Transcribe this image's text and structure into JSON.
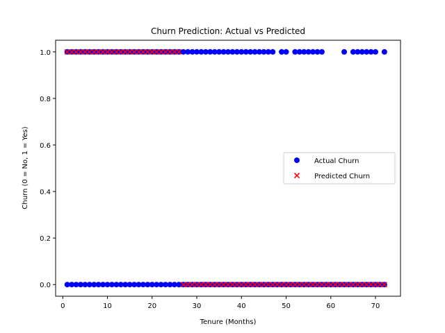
{
  "chart_data": {
    "type": "scatter",
    "title": "Churn Prediction: Actual vs Predicted",
    "xlabel": "Tenure (Months)",
    "ylabel": "Churn (0 = No, 1 = Yes)",
    "xlim": [
      -1.6,
      75.6
    ],
    "ylim": [
      -0.05,
      1.05
    ],
    "xticks": [
      0,
      10,
      20,
      30,
      40,
      50,
      60,
      70
    ],
    "xtick_labels": [
      "0",
      "10",
      "20",
      "30",
      "40",
      "50",
      "60",
      "70"
    ],
    "yticks": [
      0.0,
      0.2,
      0.4,
      0.6,
      0.8,
      1.0
    ],
    "ytick_labels": [
      "0.0",
      "0.2",
      "0.4",
      "0.6",
      "0.8",
      "1.0"
    ],
    "grid": false,
    "legend": {
      "position": "center-right"
    },
    "series": [
      {
        "name": "Actual Churn",
        "marker": "circle",
        "color": "#0000ff",
        "points_y1": [
          1,
          2,
          3,
          4,
          5,
          6,
          7,
          8,
          9,
          10,
          11,
          12,
          13,
          14,
          15,
          16,
          17,
          18,
          19,
          20,
          21,
          22,
          23,
          24,
          25,
          26,
          27,
          28,
          29,
          30,
          31,
          32,
          33,
          34,
          35,
          36,
          37,
          38,
          39,
          40,
          41,
          42,
          43,
          44,
          45,
          46,
          47,
          49,
          50,
          52,
          53,
          54,
          55,
          56,
          57,
          58,
          63,
          65,
          66,
          67,
          68,
          69,
          70,
          72
        ],
        "points_y0": [
          1,
          2,
          3,
          4,
          5,
          6,
          7,
          8,
          9,
          10,
          11,
          12,
          13,
          14,
          15,
          16,
          17,
          18,
          19,
          20,
          21,
          22,
          23,
          24,
          25,
          26,
          27,
          28,
          29,
          30,
          31,
          32,
          33,
          34,
          35,
          36,
          37,
          38,
          39,
          40,
          41,
          42,
          43,
          44,
          45,
          46,
          47,
          48,
          49,
          50,
          51,
          52,
          53,
          54,
          55,
          56,
          57,
          58,
          59,
          60,
          61,
          62,
          63,
          64,
          65,
          66,
          67,
          68,
          69,
          70,
          71,
          72
        ]
      },
      {
        "name": "Predicted Churn",
        "marker": "x",
        "color": "#ff0000",
        "points_y1": [
          1,
          2,
          3,
          4,
          5,
          6,
          7,
          8,
          9,
          10,
          11,
          12,
          13,
          14,
          15,
          16,
          17,
          18,
          19,
          20,
          21,
          22,
          23,
          24,
          25,
          26
        ],
        "points_y0": [
          27,
          28,
          29,
          30,
          31,
          32,
          33,
          34,
          35,
          36,
          37,
          38,
          39,
          40,
          41,
          42,
          43,
          44,
          45,
          46,
          47,
          48,
          49,
          50,
          51,
          52,
          53,
          54,
          55,
          56,
          57,
          58,
          59,
          60,
          61,
          62,
          63,
          64,
          65,
          66,
          67,
          68,
          69,
          70,
          71,
          72
        ]
      }
    ]
  }
}
